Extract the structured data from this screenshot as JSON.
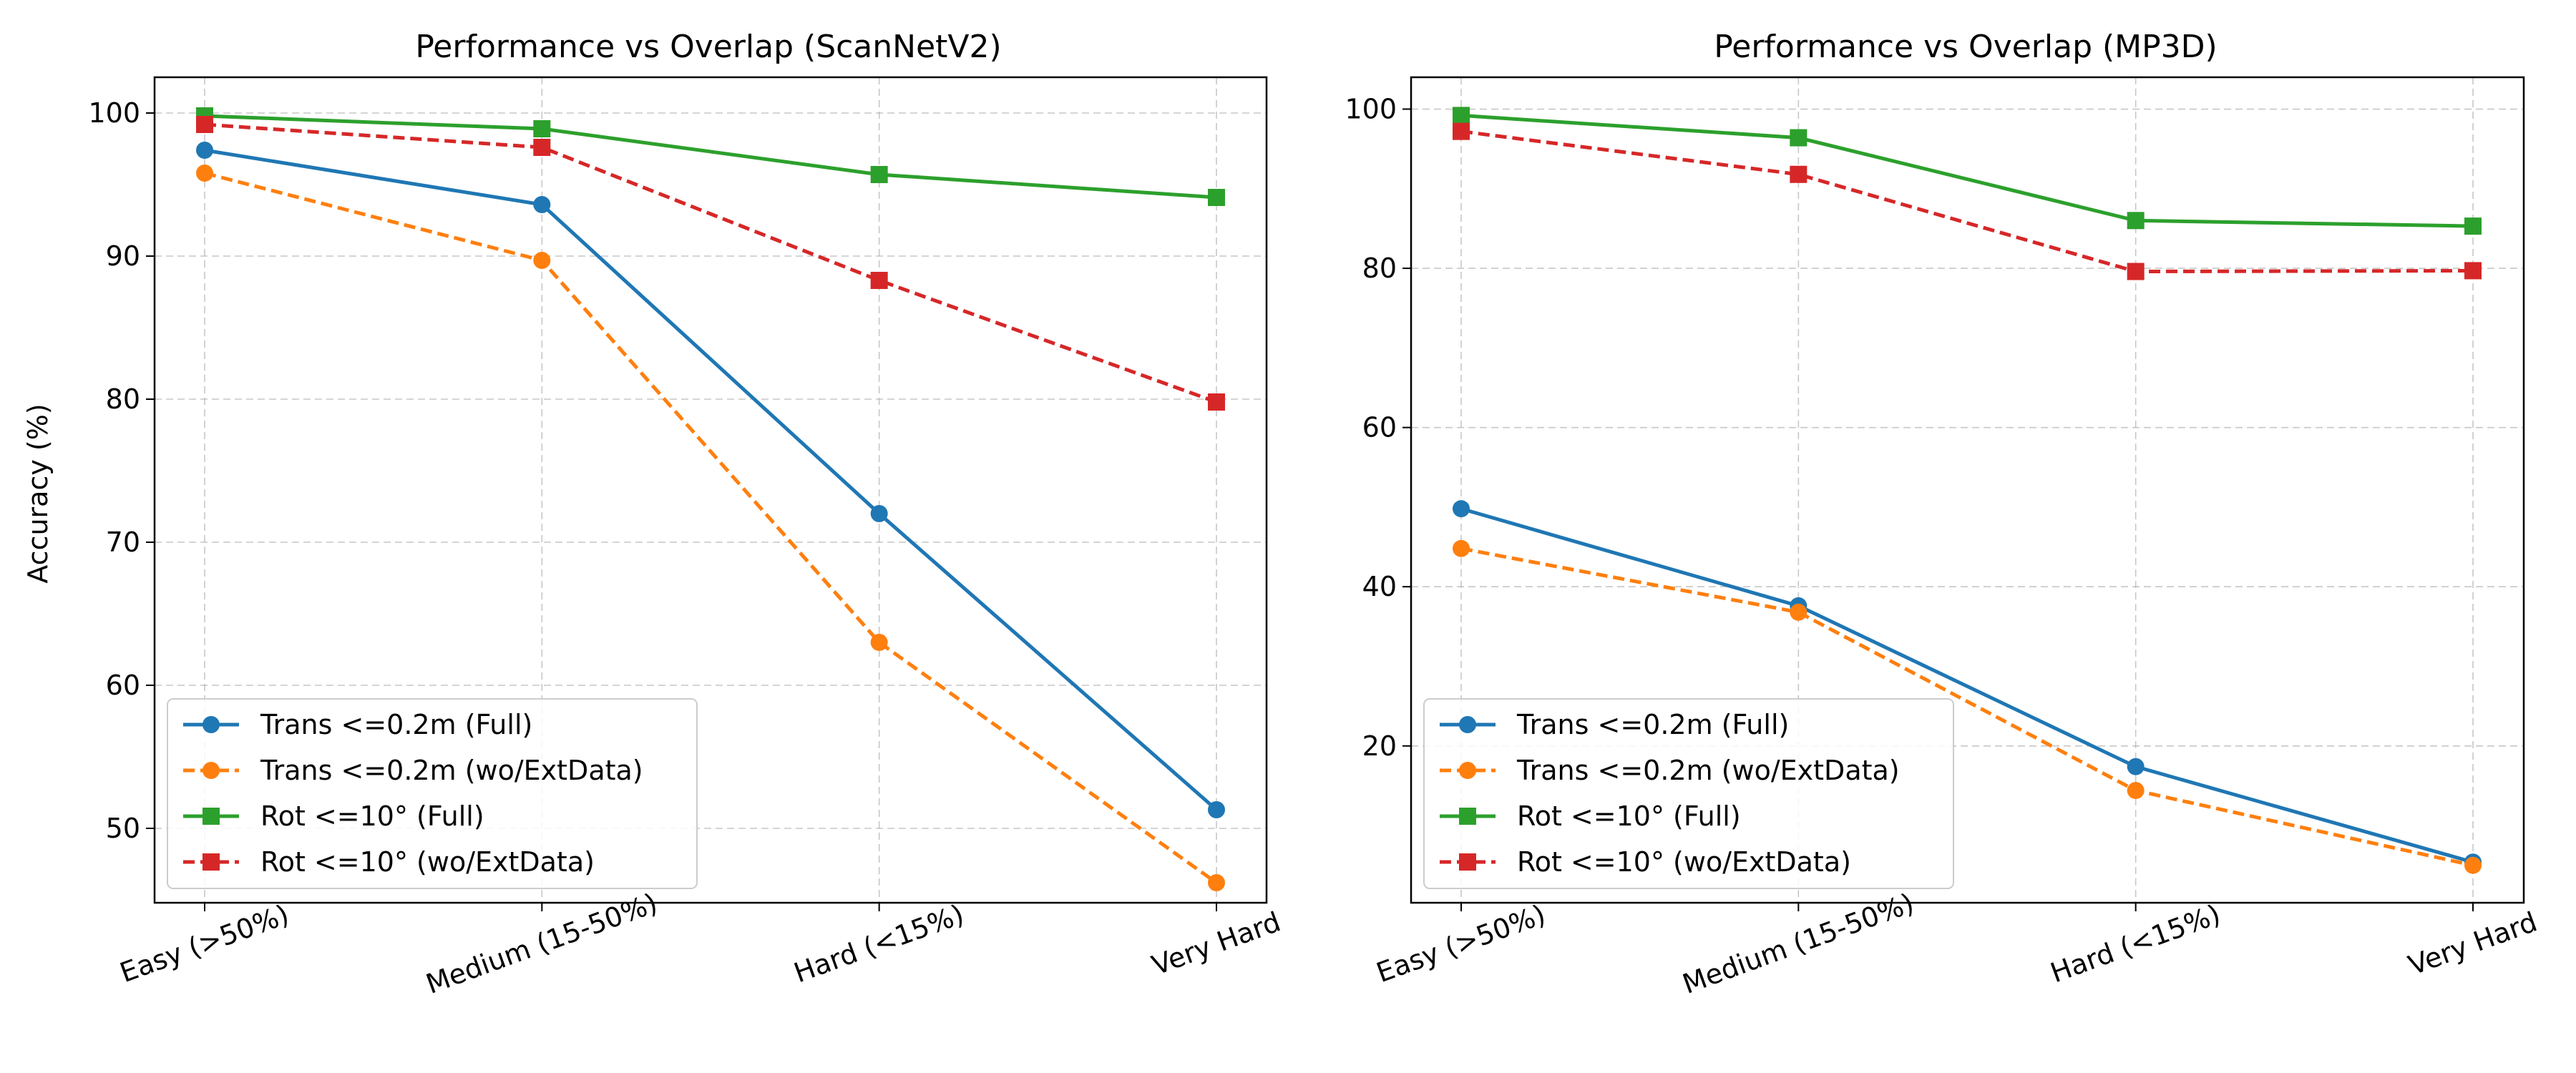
{
  "chart_data": [
    {
      "type": "line",
      "title": "Performance vs Overlap (ScanNetV2)",
      "xlabel": "",
      "ylabel": "Accuracy (%)",
      "categories": [
        "Easy (>50%)",
        "Medium (15-50%)",
        "Hard (<15%)",
        "Very Hard"
      ],
      "ylim": [
        44.8,
        102.5
      ],
      "yticks": [
        50,
        60,
        70,
        80,
        90,
        100
      ],
      "grid": true,
      "legend_position": "lower-left",
      "series": [
        {
          "name": "Trans <=0.2m (Full)",
          "values": [
            97.4,
            93.6,
            72.0,
            51.3
          ],
          "color": "#1f77b4",
          "marker": "circle",
          "dash": "solid"
        },
        {
          "name": "Trans <=0.2m (wo/ExtData)",
          "values": [
            95.8,
            89.7,
            63.0,
            46.2
          ],
          "color": "#ff7f0e",
          "marker": "circle",
          "dash": "dashed"
        },
        {
          "name": "Rot <=10° (Full)",
          "values": [
            99.8,
            98.9,
            95.7,
            94.1
          ],
          "color": "#2ca02c",
          "marker": "square",
          "dash": "solid"
        },
        {
          "name": "Rot <=10° (wo/ExtData)",
          "values": [
            99.2,
            97.6,
            88.3,
            79.8
          ],
          "color": "#d62728",
          "marker": "square",
          "dash": "dashed"
        }
      ]
    },
    {
      "type": "line",
      "title": "Performance vs Overlap (MP3D)",
      "xlabel": "",
      "ylabel": "",
      "categories": [
        "Easy (>50%)",
        "Medium (15-50%)",
        "Hard (<15%)",
        "Very Hard"
      ],
      "ylim": [
        0.3,
        104.0
      ],
      "yticks": [
        20,
        40,
        60,
        80,
        100
      ],
      "grid": true,
      "legend_position": "lower-left",
      "series": [
        {
          "name": "Trans <=0.2m (Full)",
          "values": [
            49.8,
            37.6,
            17.4,
            5.4
          ],
          "color": "#1f77b4",
          "marker": "circle",
          "dash": "solid"
        },
        {
          "name": "Trans <=0.2m (wo/ExtData)",
          "values": [
            44.8,
            36.8,
            14.4,
            5.0
          ],
          "color": "#ff7f0e",
          "marker": "circle",
          "dash": "dashed"
        },
        {
          "name": "Rot <=10° (Full)",
          "values": [
            99.2,
            96.4,
            86.0,
            85.3
          ],
          "color": "#2ca02c",
          "marker": "square",
          "dash": "solid"
        },
        {
          "name": "Rot <=10° (wo/ExtData)",
          "values": [
            97.2,
            91.8,
            79.6,
            79.7
          ],
          "color": "#d62728",
          "marker": "square",
          "dash": "dashed"
        }
      ]
    }
  ]
}
